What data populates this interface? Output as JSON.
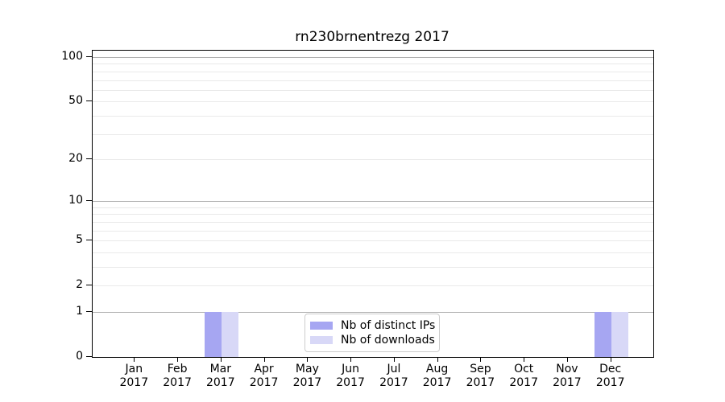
{
  "title": "rn230brnentrezg 2017",
  "legend": {
    "items": [
      {
        "label": "Nb of distinct IPs",
        "color": "#a6a6f2"
      },
      {
        "label": "Nb of downloads",
        "color": "#d8d8f7"
      }
    ]
  },
  "axes": {
    "y_tick_labels": [
      "0",
      "1",
      "2",
      "5",
      "10",
      "20",
      "50",
      "100"
    ],
    "x_tick_labels_line1": [
      "Jan",
      "Feb",
      "Mar",
      "Apr",
      "May",
      "Jun",
      "Jul",
      "Aug",
      "Sep",
      "Oct",
      "Nov",
      "Dec"
    ],
    "x_tick_labels_line2": [
      "2017",
      "2017",
      "2017",
      "2017",
      "2017",
      "2017",
      "2017",
      "2017",
      "2017",
      "2017",
      "2017",
      "2017"
    ],
    "grid_minor_color": "#e9e9e9",
    "grid_major_color": "#b0b0b0",
    "spine_color": "#000000",
    "text_color": "#000000"
  },
  "chart_data": {
    "type": "bar",
    "title": "rn230brnentrezg 2017",
    "categories": [
      "Jan 2017",
      "Feb 2017",
      "Mar 2017",
      "Apr 2017",
      "May 2017",
      "Jun 2017",
      "Jul 2017",
      "Aug 2017",
      "Sep 2017",
      "Oct 2017",
      "Nov 2017",
      "Dec 2017"
    ],
    "series": [
      {
        "name": "Nb of distinct IPs",
        "color": "#a6a6f2",
        "values": [
          0,
          0,
          1,
          0,
          0,
          0,
          0,
          0,
          0,
          0,
          0,
          1
        ]
      },
      {
        "name": "Nb of downloads",
        "color": "#d8d8f7",
        "values": [
          0,
          0,
          1,
          0,
          0,
          0,
          0,
          0,
          0,
          0,
          0,
          1
        ]
      }
    ],
    "yscale": "log1p",
    "ylim": [
      0,
      110.5
    ],
    "yticks": [
      0,
      1,
      2,
      5,
      10,
      20,
      50,
      100
    ],
    "y_major_gridlines": [
      1,
      10,
      100
    ],
    "y_minor_gridlines": [
      2,
      3,
      4,
      5,
      6,
      7,
      8,
      9,
      20,
      30,
      40,
      50,
      60,
      70,
      80,
      90
    ],
    "grid": true,
    "legend_position": "lower center",
    "xlabel": "",
    "ylabel": ""
  }
}
